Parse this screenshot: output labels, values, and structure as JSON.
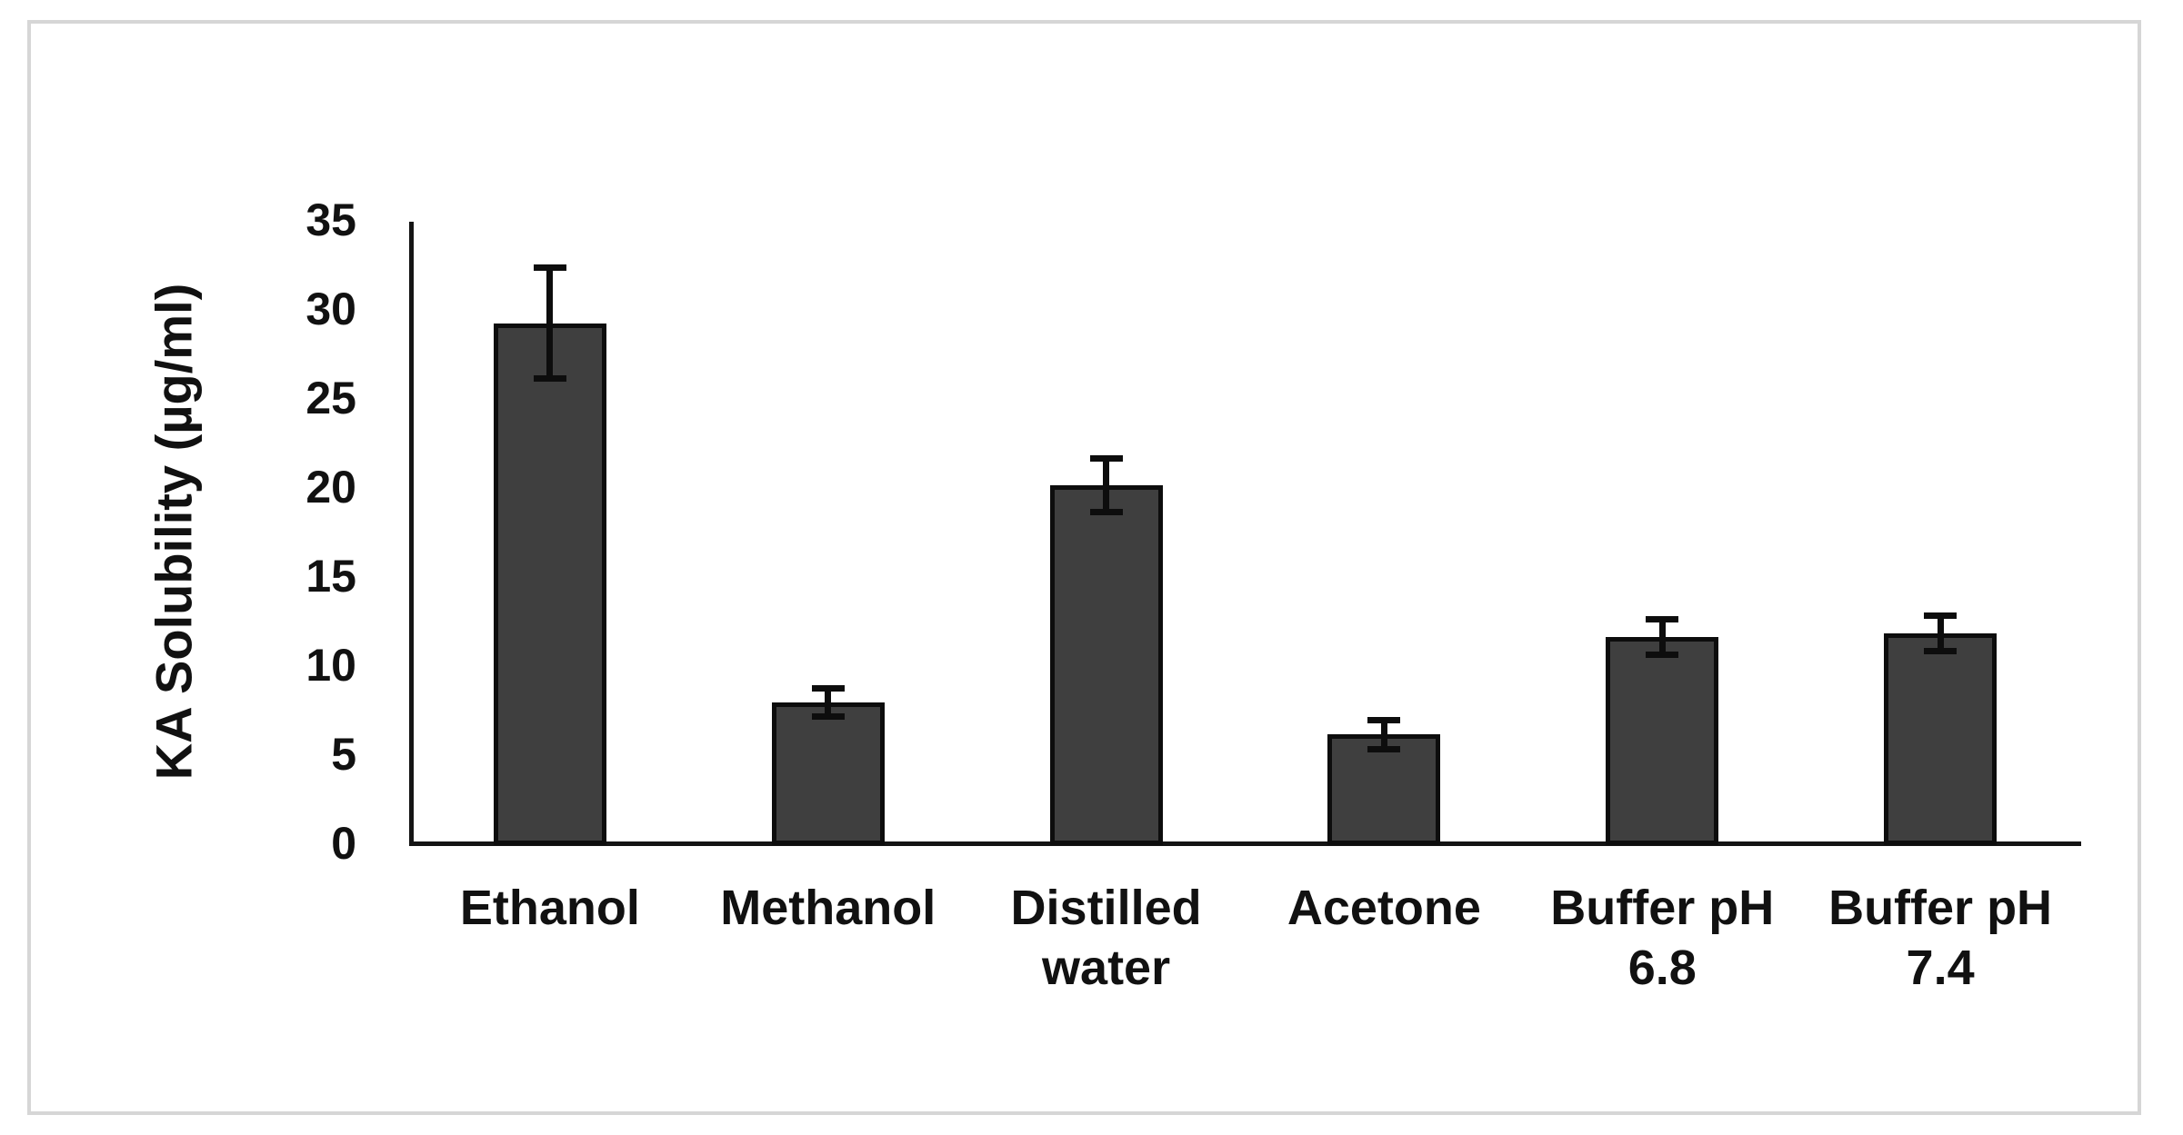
{
  "figure": {
    "background_color": "#ffffff",
    "border_color": "#d6d6d6"
  },
  "chart_data": {
    "type": "bar",
    "title": "",
    "xlabel": "",
    "ylabel": "KA Solubility (µg/ml)",
    "ylim": [
      0,
      35
    ],
    "ytick_step": 5,
    "yticks": [
      0,
      5,
      10,
      15,
      20,
      25,
      30,
      35
    ],
    "categories": [
      "Ethanol",
      "Methanol",
      "Distilled water",
      "Acetone",
      "Buffer pH 6.8",
      "Buffer pH 7.4"
    ],
    "series": [
      {
        "name": "KA Solubility",
        "values": [
          29.2,
          7.9,
          20.1,
          6.1,
          11.6,
          11.8
        ],
        "errors": [
          3.1,
          0.8,
          1.5,
          0.8,
          1.0,
          1.0
        ]
      }
    ],
    "grid": false,
    "legend": null,
    "bar_color": "#3f3f3f",
    "bar_border_color": "#0d0d0d",
    "error_bar_color": "#0d0d0d",
    "axis_color": "#141414",
    "text_color": "#111111"
  }
}
